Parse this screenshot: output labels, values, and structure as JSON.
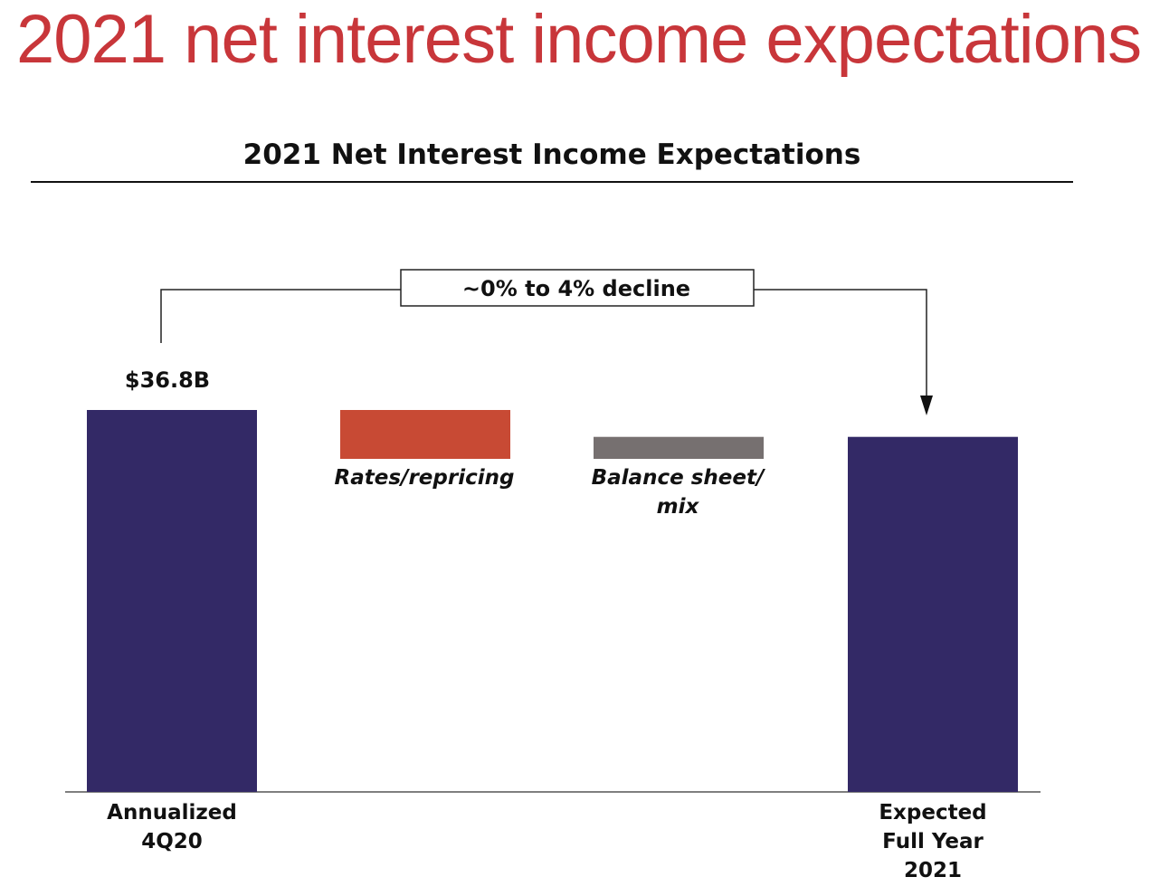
{
  "page_title": "2021 net interest income expectations",
  "colors": {
    "title": "#c8363a",
    "bar_total": "#332966",
    "bar_rates": "#c84a34",
    "bar_balance": "#767070",
    "ink": "#111111"
  },
  "chart_data": {
    "type": "waterfall",
    "title": "2021 Net Interest Income Expectations",
    "annotation": "~0% to 4% decline",
    "unit": "$B",
    "bars": [
      {
        "category_lines": [
          "Annualized",
          "4Q20"
        ],
        "kind": "total",
        "value": 36.8,
        "data_label": "$36.8B",
        "color": "#332966"
      },
      {
        "category_lines": [
          "Rates/repricing"
        ],
        "kind": "decrease",
        "from": 36.8,
        "to": 34.8,
        "data_label": "",
        "color": "#c84a34"
      },
      {
        "category_lines": [
          "Balance sheet/",
          "mix"
        ],
        "kind": "increase",
        "from": 34.8,
        "to": 35.7,
        "data_label": "",
        "color": "#767070"
      },
      {
        "category_lines": [
          "Expected",
          "Full Year",
          "2021"
        ],
        "kind": "total",
        "value": 35.7,
        "data_label": "",
        "color": "#332966"
      }
    ],
    "grid": false,
    "legend": false
  }
}
